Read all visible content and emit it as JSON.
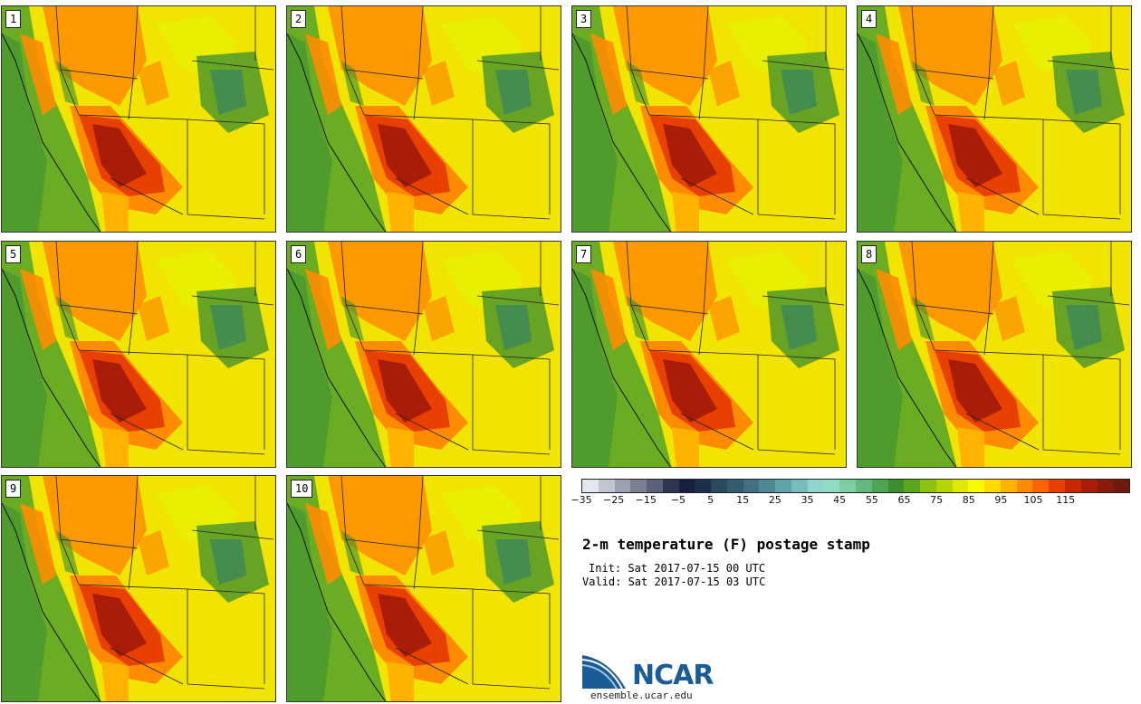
{
  "panels": [
    {
      "label": "1"
    },
    {
      "label": "2"
    },
    {
      "label": "3"
    },
    {
      "label": "4"
    },
    {
      "label": "5"
    },
    {
      "label": "6"
    },
    {
      "label": "7"
    },
    {
      "label": "8"
    },
    {
      "label": "9"
    },
    {
      "label": "10"
    }
  ],
  "colorbar": {
    "colors": [
      "#e5e7ee",
      "#c1c5cf",
      "#9ba1b0",
      "#7a8092",
      "#5b6176",
      "#2e3550",
      "#172040",
      "#1c2e4a",
      "#2b4a5e",
      "#355b6e",
      "#427082",
      "#508896",
      "#62a3ab",
      "#76bdbc",
      "#8fd5cb",
      "#8fdbc4",
      "#7ccfa2",
      "#63b97b",
      "#4ca553",
      "#3a8e30",
      "#5aa61f",
      "#8ec012",
      "#b5d600",
      "#dfe800",
      "#fafa00",
      "#ffd900",
      "#ffb200",
      "#ff8c00",
      "#ff6400",
      "#e84000",
      "#c82800",
      "#a81c08",
      "#8a1a0c",
      "#6e1c0e"
    ],
    "tick_labels": [
      "−35",
      "−25",
      "−15",
      "−5",
      "5",
      "15",
      "25",
      "35",
      "45",
      "55",
      "65",
      "75",
      "85",
      "95",
      "105",
      "115"
    ]
  },
  "title": "2-m temperature (F) postage stamp",
  "init": "Init: Sat 2017-07-15 00 UTC",
  "valid": "Valid: Sat 2017-07-15 03 UTC",
  "logo": {
    "text": "NCAR",
    "url": "ensemble.ucar.edu",
    "color": "#1a5c97"
  },
  "map_colors": {
    "ocean_far": "#4f9c2d",
    "ocean_near": "#6bad22",
    "baja": "#b5d600",
    "hot": "#a81c08",
    "warm": "#ff8c00",
    "mild": "#fafa00",
    "cool": "#3a8e30"
  }
}
